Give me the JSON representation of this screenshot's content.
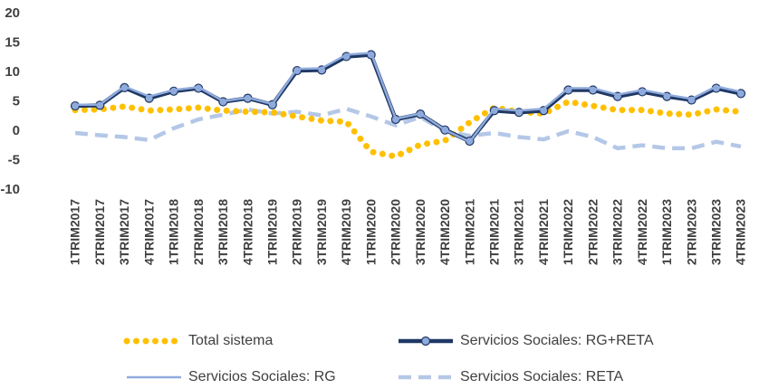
{
  "chart_data": {
    "type": "line",
    "categories": [
      "1TRIM2017",
      "2TRIM2017",
      "3TRIM2017",
      "4TRIM2017",
      "1TRIM2018",
      "2TRIM2018",
      "3TRIM2018",
      "4TRIM2018",
      "1TRIM2019",
      "2TRIM2019",
      "3TRIM2019",
      "4TRIM2019",
      "1TRIM2020",
      "2TRIM2020",
      "3TRIM2020",
      "4TRIM2020",
      "1TRIM2021",
      "2TRIM2021",
      "3TRIM2021",
      "4TRIM2021",
      "1TRIM2022",
      "2TRIM2022",
      "3TRIM2022",
      "4TRIM2022",
      "1TRIM2023",
      "2TRIM2023",
      "3TRIM2023",
      "4TRIM2023"
    ],
    "series": [
      {
        "name": "Total sistema",
        "color": "#ffc000",
        "values": [
          3.6,
          3.7,
          4.2,
          3.5,
          3.7,
          4.0,
          3.5,
          3.3,
          3.2,
          2.5,
          1.8,
          1.6,
          -3.5,
          -4.3,
          -2.3,
          -1.6,
          1.5,
          4.0,
          3.3,
          3.0,
          5.0,
          4.3,
          3.6,
          3.6,
          3.0,
          2.8,
          3.7,
          3.3
        ]
      },
      {
        "name": "Servicios Sociales: RG+RETA",
        "color": "#1f3864",
        "values": [
          4.3,
          4.4,
          7.4,
          5.6,
          6.8,
          7.3,
          5.0,
          5.6,
          4.5,
          10.3,
          10.4,
          12.7,
          13.0,
          2.0,
          2.9,
          0.2,
          -1.7,
          3.5,
          3.2,
          3.5,
          7.0,
          7.0,
          5.9,
          6.7,
          5.9,
          5.3,
          7.3,
          6.4
        ]
      },
      {
        "name": "Servicios Sociales: RG",
        "color": "#8faadc",
        "values": [
          4.5,
          4.5,
          7.6,
          5.9,
          7.0,
          7.5,
          5.1,
          5.7,
          4.6,
          10.6,
          10.7,
          13.0,
          13.3,
          2.1,
          3.0,
          0.2,
          -1.8,
          3.8,
          3.5,
          3.8,
          7.3,
          7.3,
          6.2,
          7.0,
          6.2,
          5.5,
          7.6,
          6.7
        ]
      },
      {
        "name": "Servicios Sociales: RETA",
        "color": "#b4c7e7",
        "values": [
          -0.3,
          -0.7,
          -1.0,
          -1.5,
          0.5,
          2.0,
          2.8,
          3.7,
          3.0,
          3.3,
          2.7,
          3.8,
          2.5,
          1.0,
          2.4,
          0.0,
          -0.8,
          -0.3,
          -1.0,
          -1.4,
          0.0,
          -1.0,
          -2.9,
          -2.4,
          -2.9,
          -2.9,
          -1.8,
          -2.6
        ]
      }
    ],
    "ylim": [
      -10,
      20
    ],
    "yticks": [
      -10,
      -5,
      0,
      5,
      10,
      15,
      20
    ],
    "legend": "bottom"
  }
}
